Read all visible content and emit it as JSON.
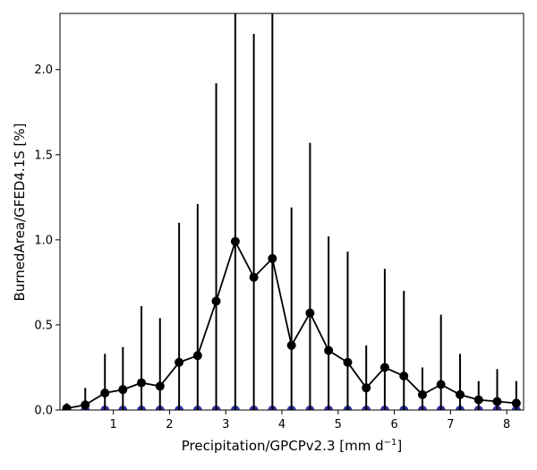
{
  "chart_data": {
    "type": "line",
    "title": "",
    "xlabel": "Precipitation/GPCPv2.3 [mm d",
    "xlabel_superscript": "−1",
    "xlabel_suffix": "]",
    "ylabel": "BurnedArea/GFED4.1S [%]",
    "xlim": [
      0.05,
      8.3
    ],
    "ylim": [
      0,
      2.33
    ],
    "xticks": [
      1,
      2,
      3,
      4,
      5,
      6,
      7,
      8
    ],
    "yticks": [
      0.0,
      0.5,
      1.0,
      1.5,
      2.0
    ],
    "xtick_labels": [
      "1",
      "2",
      "3",
      "4",
      "5",
      "6",
      "7",
      "8"
    ],
    "ytick_labels": [
      "0.0",
      "0.5",
      "1.0",
      "1.5",
      "2.0"
    ],
    "grid": false,
    "legend": "none",
    "series": [
      {
        "color": "#000000",
        "marker": "circle",
        "x": [
          0.17,
          0.5,
          0.85,
          1.17,
          1.5,
          1.83,
          2.17,
          2.5,
          2.83,
          3.17,
          3.5,
          3.83,
          4.17,
          4.5,
          4.83,
          5.17,
          5.5,
          5.83,
          6.17,
          6.5,
          6.83,
          7.17,
          7.5,
          7.83,
          8.17
        ],
        "y": [
          0.01,
          0.03,
          0.1,
          0.12,
          0.16,
          0.14,
          0.28,
          0.32,
          0.64,
          0.99,
          0.78,
          0.89,
          0.38,
          0.57,
          0.35,
          0.28,
          0.13,
          0.25,
          0.2,
          0.09,
          0.15,
          0.09,
          0.06,
          0.05,
          0.04
        ],
        "error_upper": [
          0.04,
          0.13,
          0.33,
          0.37,
          0.61,
          0.54,
          1.1,
          1.21,
          1.92,
          2.5,
          2.21,
          2.5,
          1.19,
          1.57,
          1.02,
          0.93,
          0.38,
          0.83,
          0.7,
          0.25,
          0.56,
          0.33,
          0.17,
          0.24,
          0.17
        ]
      },
      {
        "color": "#3333aa",
        "marker": "circle",
        "x": [
          0.17,
          0.5,
          0.85,
          1.17,
          1.5,
          1.83,
          2.17,
          2.5,
          2.83,
          3.17,
          3.5,
          3.83,
          4.17,
          4.5,
          4.83,
          5.17,
          5.5,
          5.83,
          6.17,
          6.5,
          6.83,
          7.17,
          7.5,
          7.83,
          8.17
        ],
        "y": [
          0.0,
          0.0,
          0.0,
          0.0,
          0.0,
          0.0,
          0.0,
          0.0,
          0.0,
          0.0,
          0.0,
          0.0,
          0.0,
          0.0,
          0.0,
          0.0,
          0.0,
          0.0,
          0.0,
          0.0,
          0.0,
          0.0,
          0.0,
          0.0,
          0.0
        ]
      }
    ]
  }
}
